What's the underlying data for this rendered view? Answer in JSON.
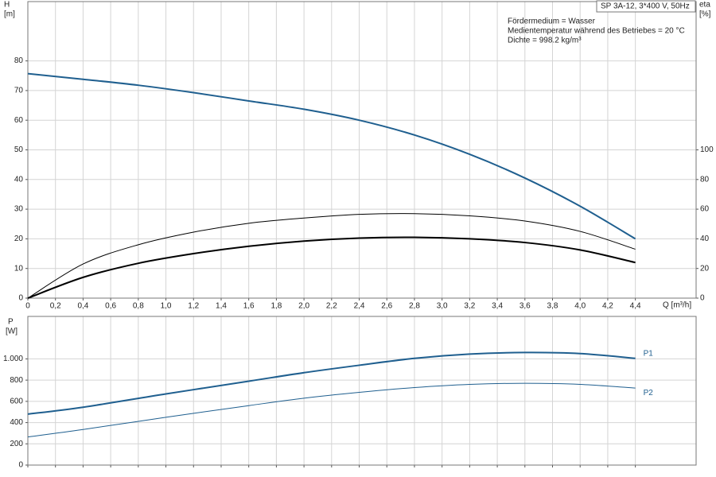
{
  "chart_data": [
    {
      "type": "line",
      "title": "SP 3A-12, 3*400 V, 50Hz",
      "annotations": [
        "Fördermedium = Wasser",
        "Medientemperatur während des Betriebes = 20 °C",
        "Dichte = 998.2 kg/m³"
      ],
      "ylabel": "H",
      "ylabel_unit": "[m]",
      "y2label": "eta",
      "y2label_unit": "[%]",
      "xlabel": "Q [m³/h]",
      "x": [
        0,
        0.4,
        0.8,
        1.2,
        1.6,
        2.0,
        2.4,
        2.8,
        3.2,
        3.6,
        4.0,
        4.4
      ],
      "xlim": [
        0,
        4.84
      ],
      "xticks": [
        0,
        {
          "value": 0.2,
          "label": "0,2"
        },
        {
          "value": 0.4,
          "label": "0,4"
        },
        {
          "value": 0.6,
          "label": "0,6"
        },
        {
          "value": 0.8,
          "label": "0,8"
        },
        {
          "value": 1.0,
          "label": "1,0"
        },
        {
          "value": 1.2,
          "label": "1,2"
        },
        {
          "value": 1.4,
          "label": "1,4"
        },
        {
          "value": 1.6,
          "label": "1,6"
        },
        {
          "value": 1.8,
          "label": "1,8"
        },
        {
          "value": 2.0,
          "label": "2,0"
        },
        {
          "value": 2.2,
          "label": "2,2"
        },
        {
          "value": 2.4,
          "label": "2,4"
        },
        {
          "value": 2.6,
          "label": "2,6"
        },
        {
          "value": 2.8,
          "label": "2,8"
        },
        {
          "value": 3.0,
          "label": "3,0"
        },
        {
          "value": 3.2,
          "label": "3,2"
        },
        {
          "value": 3.4,
          "label": "3,4"
        },
        {
          "value": 3.6,
          "label": "3,6"
        },
        {
          "value": 3.8,
          "label": "3,8"
        },
        {
          "value": 4.0,
          "label": "4,0"
        },
        {
          "value": 4.2,
          "label": "4,2"
        },
        {
          "value": 4.4,
          "label": "4,4"
        }
      ],
      "ylim": [
        0,
        100
      ],
      "yticks": [
        0,
        10,
        20,
        30,
        40,
        50,
        60,
        70,
        80
      ],
      "y2lim": [
        0,
        200
      ],
      "y2ticks": [
        0,
        20,
        40,
        60,
        80,
        100
      ],
      "grid": true,
      "series": [
        {
          "color": "#1f5f8f",
          "line_width": 2,
          "values": [
            75.7,
            73.8,
            71.8,
            69.3,
            66.5,
            63.7,
            60,
            55,
            48.5,
            40.5,
            31,
            20
          ]
        },
        {
          "color": "#000000",
          "line_width": 1,
          "axis": "y2",
          "values": [
            0,
            23,
            36,
            44.5,
            50.5,
            54,
            56.5,
            57,
            55.5,
            52,
            45,
            33
          ]
        },
        {
          "color": "#000000",
          "line_width": 2,
          "axis": "y2",
          "values": [
            0,
            14,
            23.5,
            30,
            35,
            38.5,
            40.5,
            41,
            40,
            37.5,
            32.5,
            24
          ]
        }
      ]
    },
    {
      "type": "line",
      "ylabel": "P",
      "ylabel_unit": "[W]",
      "x": [
        0,
        0.4,
        1.0,
        1.6,
        2.0,
        2.4,
        2.8,
        3.2,
        3.6,
        4.0,
        4.4
      ],
      "xlim": [
        0,
        4.84
      ],
      "ylim": [
        0,
        1400
      ],
      "yticks": [
        0,
        200,
        400,
        600,
        800,
        {
          "value": 1000,
          "label": "1.000"
        }
      ],
      "grid": true,
      "series": [
        {
          "name": "P1",
          "color": "#1f5f8f",
          "line_width": 2,
          "values": [
            480,
            545,
            670,
            790,
            870,
            940,
            1005,
            1045,
            1060,
            1050,
            1005
          ]
        },
        {
          "name": "P2",
          "color": "#1f5f8f",
          "line_width": 1,
          "values": [
            265,
            335,
            450,
            560,
            630,
            685,
            730,
            760,
            770,
            760,
            725
          ]
        }
      ]
    }
  ]
}
